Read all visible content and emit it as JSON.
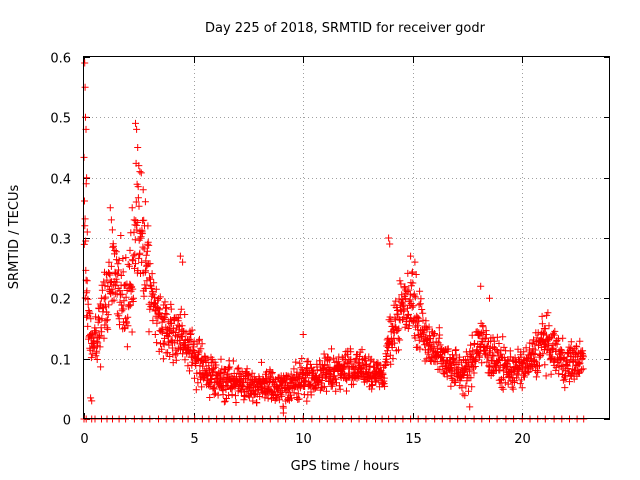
{
  "chart_data": {
    "type": "scatter",
    "title": "Day 225 of 2018, SRMTID for receiver godr",
    "xlabel": "GPS time / hours",
    "ylabel": "SRMTID / TECUs",
    "xlim": [
      0,
      24
    ],
    "ylim": [
      0,
      0.6
    ],
    "xticks": [
      0,
      5,
      10,
      15,
      20
    ],
    "yticks": [
      0,
      0.1,
      0.2,
      0.3,
      0.4,
      0.5,
      0.6
    ],
    "xtick_labels": [
      "0",
      "5",
      "10",
      "15",
      "20"
    ],
    "ytick_labels": [
      "0",
      "0.1",
      "0.2",
      "0.3",
      "0.4",
      "0.5",
      "0.6"
    ],
    "grid": true,
    "marker": "+",
    "marker_color": "#ff0000",
    "series": [
      {
        "name": "godr",
        "trend": {
          "x": [
            0,
            0.05,
            0.1,
            0.2,
            0.3,
            0.5,
            0.7,
            1.0,
            1.3,
            1.6,
            1.9,
            2.2,
            2.4,
            2.6,
            2.8,
            3.1,
            3.5,
            4.0,
            4.5,
            5.0,
            5.5,
            6.0,
            7.0,
            8.0,
            9.0,
            10.0,
            11.0,
            12.0,
            13.0,
            13.7,
            13.9,
            14.2,
            14.6,
            15.0,
            15.3,
            15.8,
            16.5,
            17.0,
            17.5,
            18.0,
            18.5,
            19.0,
            19.5,
            20.0,
            20.5,
            21.0,
            21.5,
            22.0,
            22.8
          ],
          "y": [
            0.38,
            0.3,
            0.22,
            0.15,
            0.13,
            0.12,
            0.15,
            0.2,
            0.24,
            0.22,
            0.2,
            0.23,
            0.33,
            0.3,
            0.25,
            0.2,
            0.16,
            0.14,
            0.13,
            0.11,
            0.08,
            0.07,
            0.06,
            0.055,
            0.05,
            0.065,
            0.075,
            0.085,
            0.08,
            0.07,
            0.13,
            0.16,
            0.19,
            0.2,
            0.16,
            0.12,
            0.1,
            0.08,
            0.075,
            0.13,
            0.11,
            0.09,
            0.08,
            0.085,
            0.1,
            0.13,
            0.11,
            0.09,
            0.1
          ],
          "spread": [
            0.12,
            0.12,
            0.1,
            0.06,
            0.05,
            0.05,
            0.06,
            0.07,
            0.08,
            0.08,
            0.08,
            0.1,
            0.12,
            0.11,
            0.09,
            0.07,
            0.06,
            0.05,
            0.05,
            0.04,
            0.035,
            0.03,
            0.03,
            0.03,
            0.03,
            0.03,
            0.035,
            0.035,
            0.03,
            0.02,
            0.05,
            0.06,
            0.06,
            0.06,
            0.05,
            0.045,
            0.04,
            0.035,
            0.035,
            0.05,
            0.045,
            0.04,
            0.035,
            0.035,
            0.04,
            0.045,
            0.04,
            0.035,
            0.035
          ]
        },
        "peaks": [
          {
            "x": 0.03,
            "y": 0.59
          },
          {
            "x": 0.05,
            "y": 0.55
          },
          {
            "x": 0.07,
            "y": 0.5
          },
          {
            "x": 0.09,
            "y": 0.48
          },
          {
            "x": 0.12,
            "y": 0.4
          },
          {
            "x": 0.1,
            "y": 0.39
          },
          {
            "x": 0.15,
            "y": 0.31
          },
          {
            "x": 2.35,
            "y": 0.49
          },
          {
            "x": 2.4,
            "y": 0.48
          },
          {
            "x": 2.45,
            "y": 0.45
          },
          {
            "x": 2.5,
            "y": 0.42
          },
          {
            "x": 2.55,
            "y": 0.41
          },
          {
            "x": 2.7,
            "y": 0.38
          },
          {
            "x": 2.8,
            "y": 0.36
          },
          {
            "x": 2.2,
            "y": 0.35
          },
          {
            "x": 1.2,
            "y": 0.35
          },
          {
            "x": 1.25,
            "y": 0.33
          },
          {
            "x": 4.4,
            "y": 0.27
          },
          {
            "x": 4.5,
            "y": 0.26
          },
          {
            "x": 13.9,
            "y": 0.3
          },
          {
            "x": 13.95,
            "y": 0.29
          },
          {
            "x": 14.9,
            "y": 0.27
          },
          {
            "x": 15.1,
            "y": 0.26
          },
          {
            "x": 18.1,
            "y": 0.22
          },
          {
            "x": 18.5,
            "y": 0.2
          },
          {
            "x": 20.9,
            "y": 0.17
          },
          {
            "x": 10.0,
            "y": 0.14
          },
          {
            "x": 0.3,
            "y": 0.035
          },
          {
            "x": 0.35,
            "y": 0.03
          },
          {
            "x": 17.6,
            "y": 0.02
          },
          {
            "x": 9.1,
            "y": 0.01
          }
        ],
        "zero_markers_x": [
          0.0,
          0.1,
          0.35,
          0.5,
          0.8,
          1.05,
          1.3,
          1.6,
          1.9,
          2.3,
          2.65,
          3.0,
          3.4,
          3.75,
          4.1,
          4.5,
          4.75,
          5.05,
          5.4,
          5.7,
          6.05,
          6.4,
          6.75,
          7.1,
          7.45,
          7.8,
          8.15,
          8.5,
          8.85,
          9.2,
          9.6,
          10.0,
          10.4,
          10.75,
          11.1,
          11.45,
          11.8,
          12.2,
          12.55,
          12.9,
          13.3,
          13.6,
          13.9,
          14.2,
          14.55,
          14.9,
          15.25,
          15.6,
          16.0,
          16.35,
          16.7,
          17.05,
          17.4,
          17.8,
          18.15,
          18.5,
          18.85,
          19.25,
          19.6,
          20.0,
          20.35,
          20.7,
          21.05,
          21.45,
          21.8,
          22.15,
          22.5,
          22.8
        ]
      }
    ]
  }
}
